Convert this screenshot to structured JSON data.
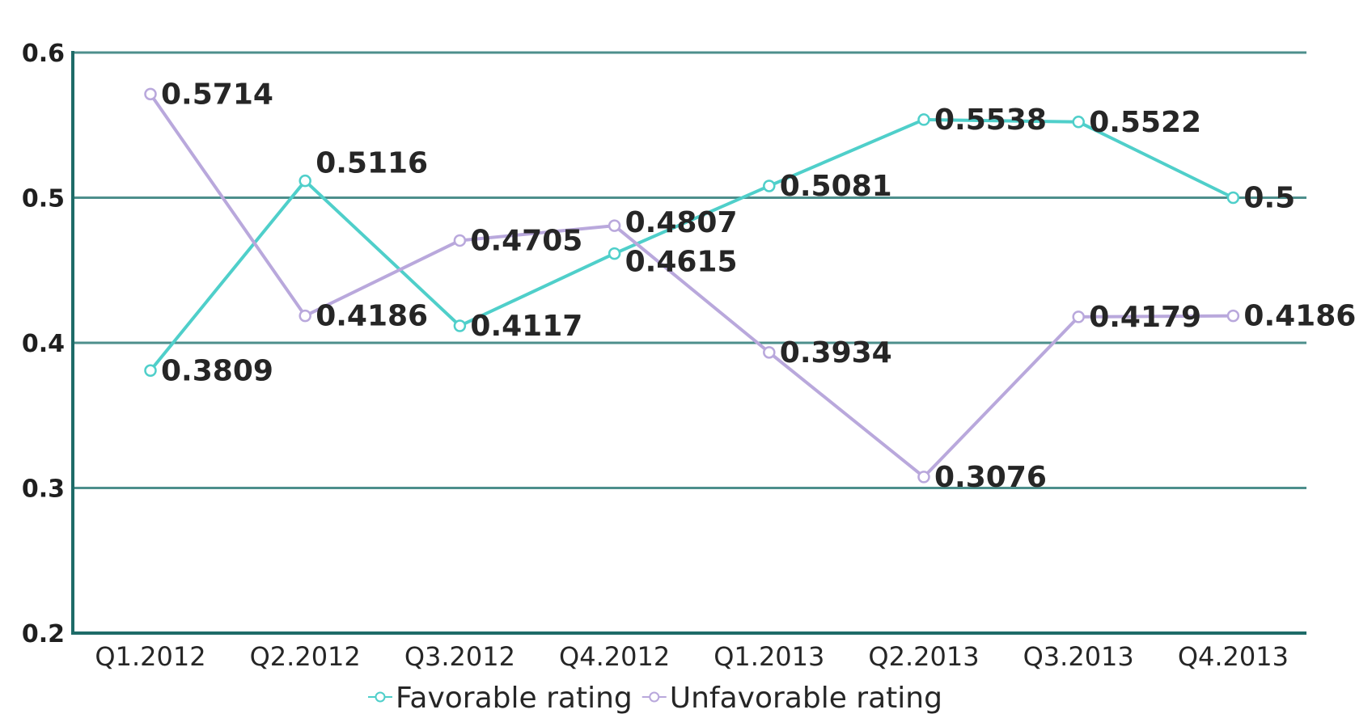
{
  "chart_data": {
    "type": "line",
    "categories": [
      "Q1.2012",
      "Q2.2012",
      "Q3.2012",
      "Q4.2012",
      "Q1.2013",
      "Q2.2013",
      "Q3.2013",
      "Q4.2013"
    ],
    "series": [
      {
        "name": "Favorable rating",
        "color": "#4fcfca",
        "values": [
          0.3809,
          0.5116,
          0.4117,
          0.4615,
          0.5081,
          0.5538,
          0.5522,
          0.5
        ],
        "labels": [
          "0.3809",
          "0.5116",
          "0.4117",
          "0.4615",
          "0.5081",
          "0.5538",
          "0.5522",
          "0.5"
        ]
      },
      {
        "name": "Unfavorable rating",
        "color": "#b9a8dc",
        "values": [
          0.5714,
          0.4186,
          0.4705,
          0.4807,
          0.3934,
          0.3076,
          0.4179,
          0.4186
        ],
        "labels": [
          "0.5714",
          "0.4186",
          "0.4705",
          "0.4807",
          "0.3934",
          "0.3076",
          "0.4179",
          "0.4186"
        ]
      }
    ],
    "y_ticks": [
      "0.2",
      "0.3",
      "0.4",
      "0.5",
      "0.6"
    ],
    "ylim": [
      0.2,
      0.6
    ],
    "grid": true,
    "gridline_color": "#4d8f8c",
    "axis_color": "#1e6b68",
    "legend_position": "bottom",
    "title": "",
    "xlabel": "",
    "ylabel": ""
  }
}
